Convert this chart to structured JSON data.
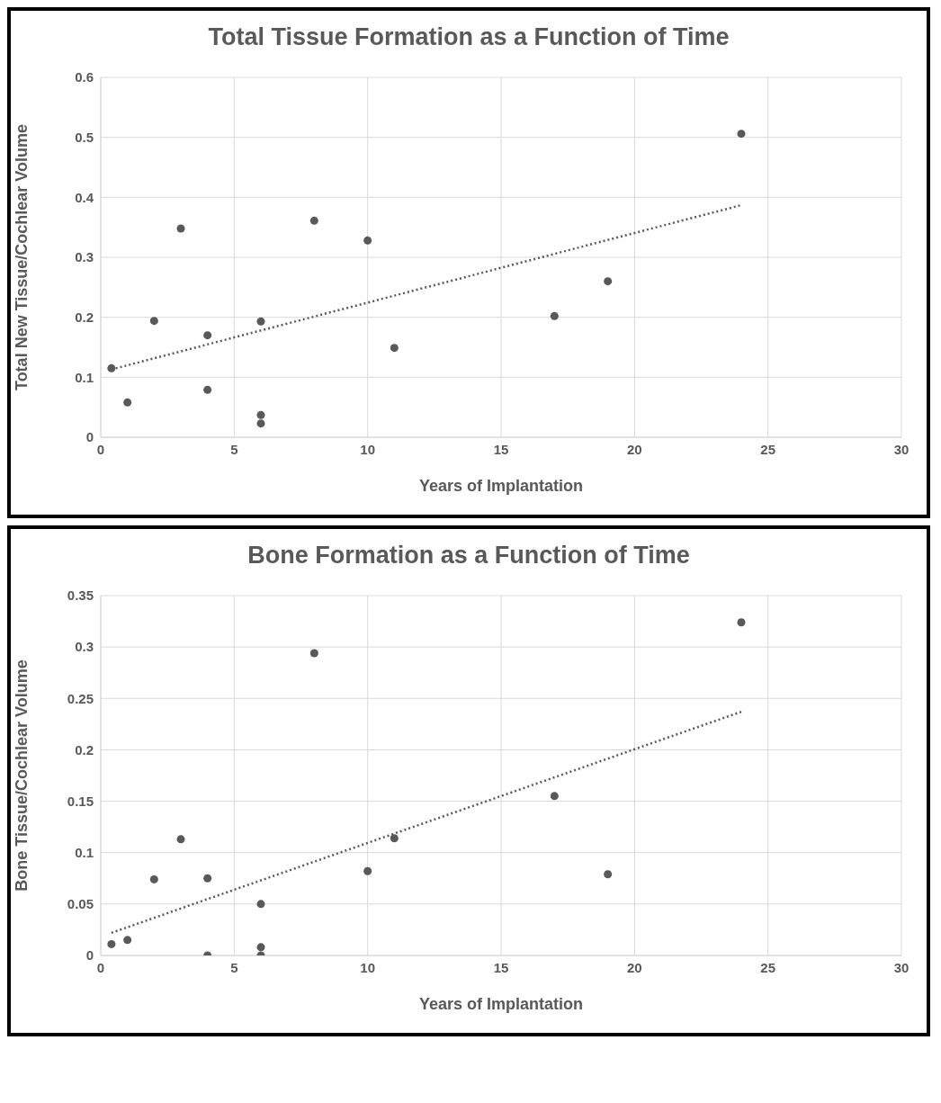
{
  "chart_data": [
    {
      "type": "scatter",
      "title": "Total Tissue Formation as a Function of Time",
      "xlabel": "Years of Implantation",
      "ylabel": "Total New Tissue/Cochlear Volume",
      "xlim": [
        0,
        30
      ],
      "xticks": [
        0,
        5,
        10,
        15,
        20,
        25,
        30
      ],
      "ylim": [
        0,
        0.6
      ],
      "yticks": [
        0,
        0.1,
        0.2,
        0.3,
        0.4,
        0.5,
        0.6
      ],
      "grid": true,
      "marker": "circle",
      "series": [
        {
          "color": "#595959",
          "x": [
            0.4,
            1,
            2,
            3,
            4,
            4,
            6,
            6,
            6,
            8,
            10,
            11,
            17,
            19,
            24
          ],
          "values": [
            0.115,
            0.058,
            0.194,
            0.348,
            0.17,
            0.079,
            0.193,
            0.037,
            0.023,
            0.361,
            0.328,
            0.149,
            0.202,
            0.26,
            0.506
          ]
        },
        {
          "type": "line",
          "color": "#595959",
          "line_style": "dotted",
          "marker": "none",
          "x": [
            0.4,
            24
          ],
          "values": [
            0.113,
            0.387
          ]
        }
      ]
    },
    {
      "type": "scatter",
      "title": "Bone Formation as a Function of Time",
      "xlabel": "Years of Implantation",
      "ylabel": "Bone Tissue/Cochlear Volume",
      "xlim": [
        0,
        30
      ],
      "xticks": [
        0,
        5,
        10,
        15,
        20,
        25,
        30
      ],
      "ylim": [
        0,
        0.35
      ],
      "yticks": [
        0,
        0.05,
        0.1,
        0.15,
        0.2,
        0.25,
        0.3,
        0.35
      ],
      "grid": true,
      "marker": "circle",
      "series": [
        {
          "color": "#595959",
          "x": [
            0.4,
            1,
            2,
            3,
            4,
            4,
            6,
            6,
            6,
            8,
            10,
            11,
            17,
            19,
            24
          ],
          "values": [
            0.011,
            0.015,
            0.074,
            0.113,
            0.075,
            0,
            0.05,
            0.008,
            0,
            0.294,
            0.082,
            0.114,
            0.155,
            0.079,
            0.324
          ]
        },
        {
          "type": "line",
          "color": "#595959",
          "line_style": "dotted",
          "marker": "none",
          "x": [
            0.4,
            24
          ],
          "values": [
            0.022,
            0.237
          ]
        }
      ]
    }
  ]
}
